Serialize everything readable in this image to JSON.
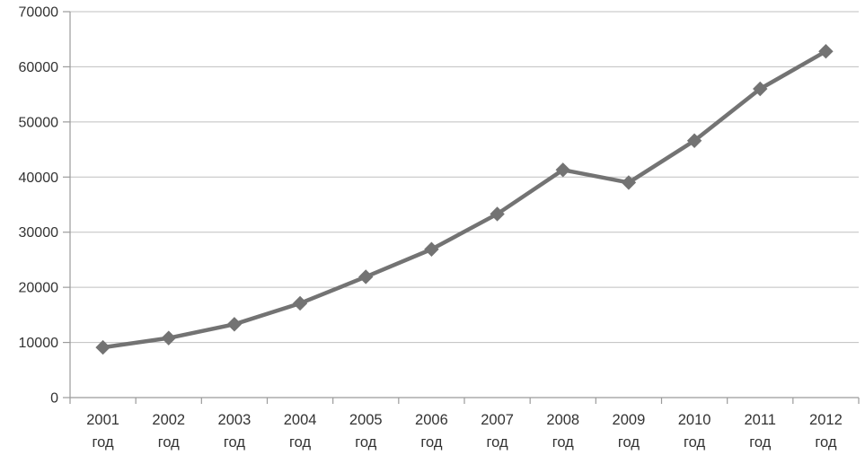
{
  "chart_data": {
    "type": "line",
    "title": "",
    "xlabel": "",
    "ylabel": "",
    "categories": [
      "2001",
      "2002",
      "2003",
      "2004",
      "2005",
      "2006",
      "2007",
      "2008",
      "2009",
      "2010",
      "2011",
      "2012"
    ],
    "category_suffix": "год",
    "series": [
      {
        "name": "",
        "values": [
          9100,
          10800,
          13300,
          17100,
          21900,
          26900,
          33300,
          41300,
          39000,
          46600,
          56000,
          62800
        ]
      }
    ],
    "ylim": [
      0,
      70000
    ],
    "ytick_step": 10000,
    "ytick_labels": [
      "0",
      "10000",
      "20000",
      "30000",
      "40000",
      "50000",
      "60000",
      "70000"
    ],
    "grid": "horizontal",
    "legend": "none",
    "marker": "diamond",
    "colors": {
      "line": "#737373",
      "marker": "#737373",
      "gridline": "#bfbfbf",
      "axis": "#9b9b9b",
      "text": "#333333",
      "background": "#ffffff"
    }
  }
}
